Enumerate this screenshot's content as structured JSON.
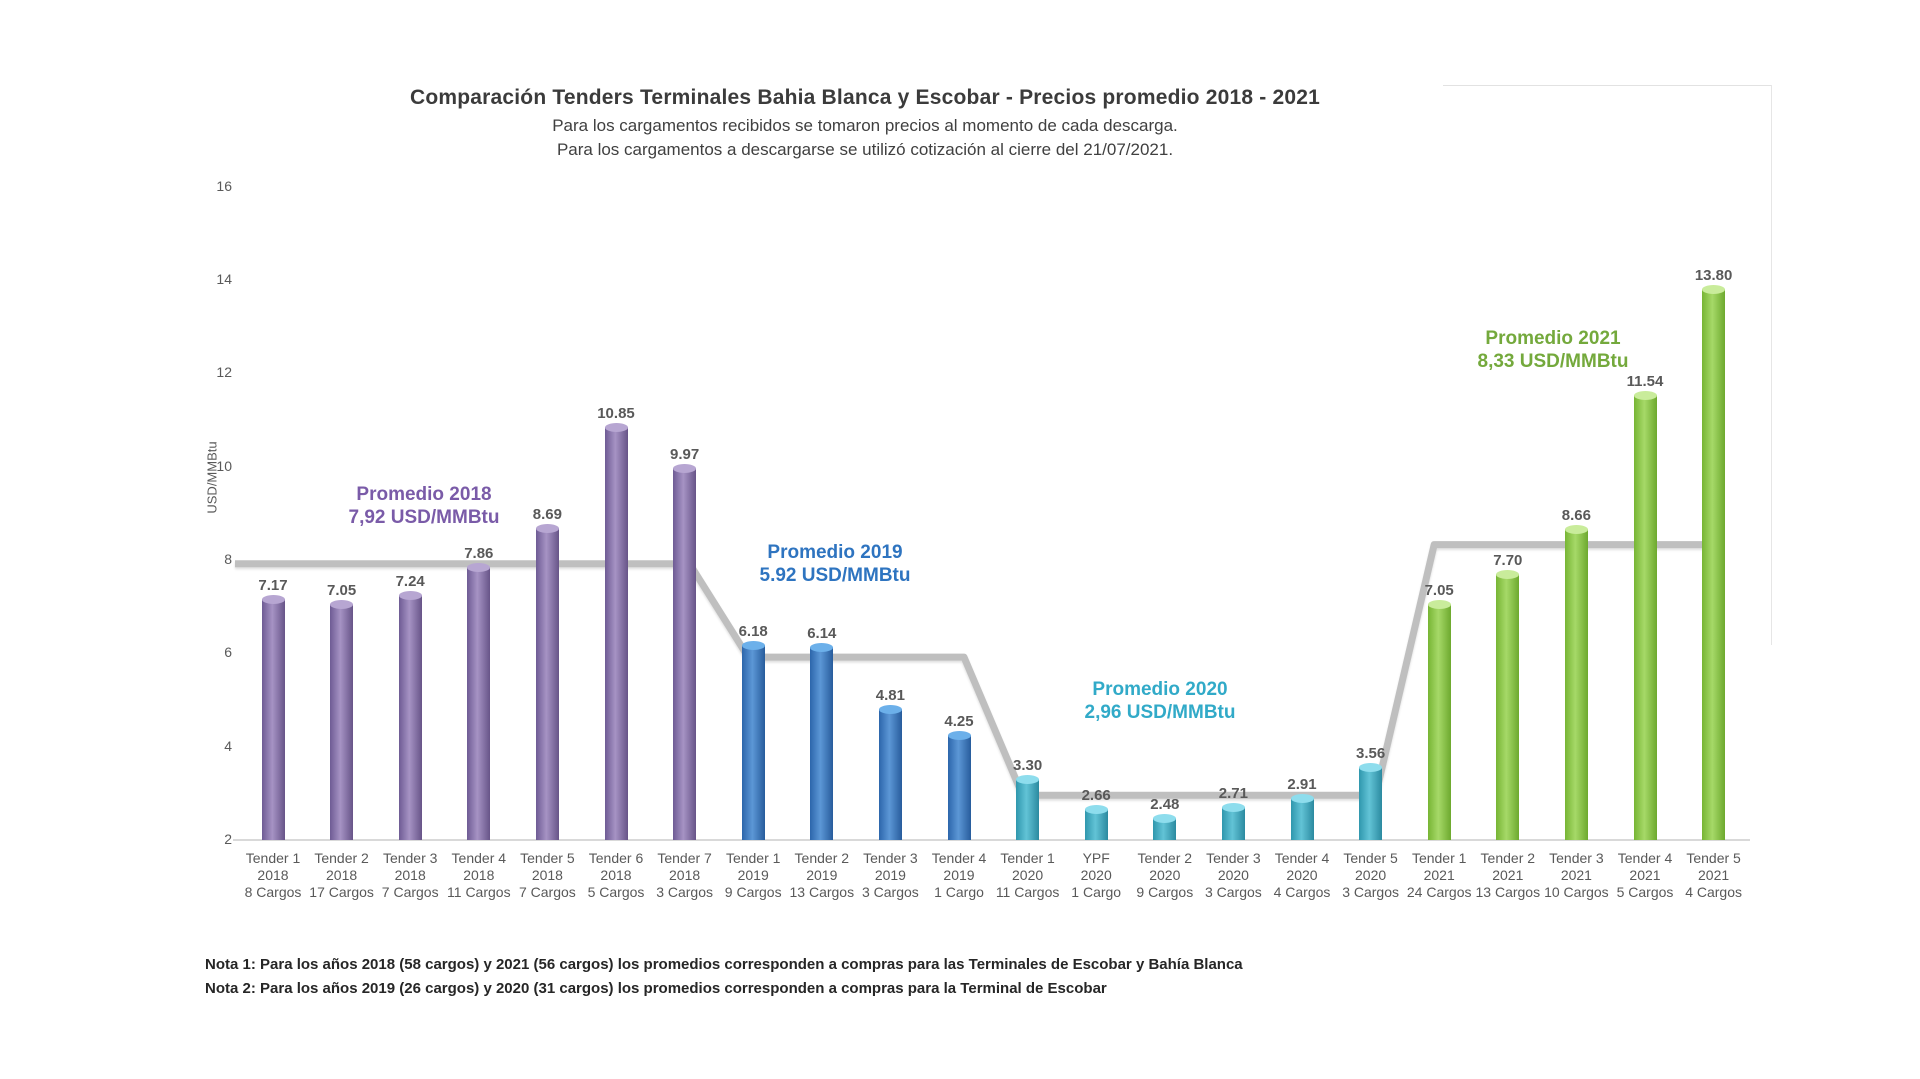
{
  "chart_data": {
    "type": "bar",
    "title": "Comparación Tenders  Terminales Bahia Blanca y  Escobar - Precios promedio 2018 - 2021",
    "subtitle_lines": [
      "Para los cargamentos recibidos se tomaron precios al momento de cada descarga.",
      "Para los cargamentos a descargarse se utilizó cotización al cierre del 21/07/2021."
    ],
    "ylabel": "USD/MMBtu",
    "ylim": [
      2,
      16
    ],
    "yticks": [
      16,
      14,
      12,
      10,
      8,
      6,
      4,
      2
    ],
    "grid": false,
    "legend": "none",
    "average_line_color": "#bfbfbf",
    "bars": [
      {
        "label": "Tender 1",
        "year": "2018",
        "cargos": "8 Cargos",
        "value": 7.17,
        "value_label": "7.17"
      },
      {
        "label": "Tender 2",
        "year": "2018",
        "cargos": "17 Cargos",
        "value": 7.05,
        "value_label": "7.05"
      },
      {
        "label": "Tender 3",
        "year": "2018",
        "cargos": "7 Cargos",
        "value": 7.24,
        "value_label": "7.24"
      },
      {
        "label": "Tender 4",
        "year": "2018",
        "cargos": "11 Cargos",
        "value": 7.86,
        "value_label": "7.86"
      },
      {
        "label": "Tender 5",
        "year": "2018",
        "cargos": "7 Cargos",
        "value": 8.69,
        "value_label": "8.69"
      },
      {
        "label": "Tender 6",
        "year": "2018",
        "cargos": "5 Cargos",
        "value": 10.85,
        "value_label": "10.85"
      },
      {
        "label": "Tender 7",
        "year": "2018",
        "cargos": "3 Cargos",
        "value": 9.97,
        "value_label": "9.97"
      },
      {
        "label": "Tender 1",
        "year": "2019",
        "cargos": "9 Cargos",
        "value": 6.18,
        "value_label": "6.18"
      },
      {
        "label": "Tender 2",
        "year": "2019",
        "cargos": "13 Cargos",
        "value": 6.14,
        "value_label": "6.14"
      },
      {
        "label": "Tender 3",
        "year": "2019",
        "cargos": "3 Cargos",
        "value": 4.81,
        "value_label": "4.81"
      },
      {
        "label": "Tender 4",
        "year": "2019",
        "cargos": "1 Cargo",
        "value": 4.25,
        "value_label": "4.25"
      },
      {
        "label": "Tender 1",
        "year": "2020",
        "cargos": "11 Cargos",
        "value": 3.3,
        "value_label": "3.30"
      },
      {
        "label": "YPF",
        "year": "2020",
        "cargos": "1 Cargo",
        "value": 2.66,
        "value_label": "2.66"
      },
      {
        "label": "Tender 2",
        "year": "2020",
        "cargos": "9 Cargos",
        "value": 2.48,
        "value_label": "2.48"
      },
      {
        "label": "Tender 3",
        "year": "2020",
        "cargos": "3 Cargos",
        "value": 2.71,
        "value_label": "2.71"
      },
      {
        "label": "Tender 4",
        "year": "2020",
        "cargos": "4 Cargos",
        "value": 2.91,
        "value_label": "2.91"
      },
      {
        "label": "Tender 5",
        "year": "2020",
        "cargos": "3 Cargos",
        "value": 3.56,
        "value_label": "3.56"
      },
      {
        "label": "Tender 1",
        "year": "2021",
        "cargos": "24 Cargos",
        "value": 7.05,
        "value_label": "7.05"
      },
      {
        "label": "Tender 2",
        "year": "2021",
        "cargos": "13 Cargos",
        "value": 7.7,
        "value_label": "7.70"
      },
      {
        "label": "Tender 3",
        "year": "2021",
        "cargos": "10 Cargos",
        "value": 8.66,
        "value_label": "8.66"
      },
      {
        "label": "Tender 4",
        "year": "2021",
        "cargos": "5 Cargos",
        "value": 11.54,
        "value_label": "11.54"
      },
      {
        "label": "Tender 5",
        "year": "2021",
        "cargos": "4 Cargos",
        "value": 13.8,
        "value_label": "13.80"
      }
    ],
    "year_groups": [
      {
        "year": "2018",
        "bar_indexes": [
          0,
          6
        ],
        "average": 7.92,
        "annotation": [
          "Promedio 2018",
          "7,92 USD/MMBtu"
        ],
        "text_color": "#7a5ba8",
        "bar_colors": {
          "edge1": "#6E5B94",
          "mid": "#A693C4",
          "edge2": "#675488",
          "cap": "#B7A6D2"
        }
      },
      {
        "year": "2019",
        "bar_indexes": [
          7,
          10
        ],
        "average": 5.92,
        "annotation": [
          "Promedio 2019",
          "5.92 USD/MMBtu"
        ],
        "text_color": "#2e74c0",
        "bar_colors": {
          "edge1": "#2C66AB",
          "mid": "#5C97D6",
          "edge2": "#275C9C",
          "cap": "#6CB0EA"
        }
      },
      {
        "year": "2020",
        "bar_indexes": [
          11,
          16
        ],
        "average": 2.96,
        "annotation": [
          "Promedio 2020",
          "2,96 USD/MMBtu"
        ],
        "text_color": "#31aac8",
        "bar_colors": {
          "edge1": "#2F97AD",
          "mid": "#62C3D6",
          "edge2": "#2B8AA0",
          "cap": "#8EDDED"
        }
      },
      {
        "year": "2021",
        "bar_indexes": [
          17,
          21
        ],
        "average": 8.33,
        "annotation": [
          "Promedio 2021",
          "8,33 USD/MMBtu"
        ],
        "text_color": "#74a93c",
        "bar_colors": {
          "edge1": "#77B534",
          "mid": "#A6D968",
          "edge2": "#6DA92E",
          "cap": "#C9EC9B"
        }
      }
    ],
    "notes": [
      "Nota 1: Para los años 2018 (58 cargos) y 2021 (56 cargos)  los promedios corresponden a compras para las Terminales de Escobar y Bahía Blanca",
      "Nota 2: Para los años 2019 (26 cargos) y 2020 (31 cargos) los promedios corresponden a compras para la Terminal de Escobar"
    ]
  }
}
